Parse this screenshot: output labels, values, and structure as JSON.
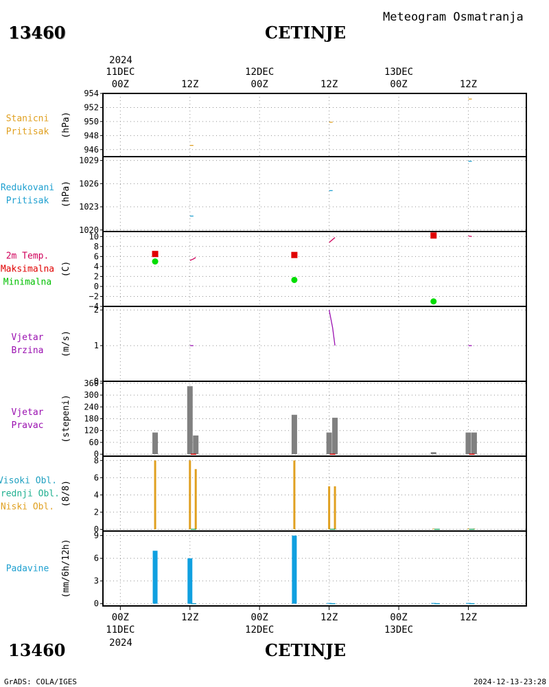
{
  "header": {
    "station_id": "13460",
    "station_name": "CETINJE",
    "meteogram_title": "Meteogram Osmatranja"
  },
  "footer": {
    "left": "GrADS: COLA/IGES",
    "right": "2024-12-13-23:28"
  },
  "time_axis": {
    "top_year": "2024",
    "bottom_year": "2024",
    "ticks": [
      {
        "t": 0,
        "label": "00Z",
        "date": "11DEC"
      },
      {
        "t": 12,
        "label": "12Z",
        "date": ""
      },
      {
        "t": 24,
        "label": "00Z",
        "date": "12DEC"
      },
      {
        "t": 36,
        "label": "12Z",
        "date": ""
      },
      {
        "t": 48,
        "label": "00Z",
        "date": "13DEC"
      },
      {
        "t": 60,
        "label": "12Z",
        "date": ""
      }
    ],
    "hour_range": [
      -3,
      70
    ]
  },
  "chart_data": [
    {
      "type": "line",
      "title_lines": [
        "Stanicni",
        "Pritisak"
      ],
      "ylabel": "(hPa)",
      "ylim": [
        945,
        954
      ],
      "yticks": [
        946,
        948,
        950,
        952,
        954
      ],
      "grid": true,
      "series": [
        {
          "color": "#e0a020",
          "segments": [
            [
              [
                12,
                946.6
              ],
              [
                12.6,
                946.6
              ]
            ],
            [
              [
                36,
                949.9
              ],
              [
                36.6,
                949.9
              ]
            ],
            [
              [
                60,
                953.2
              ],
              [
                60.6,
                953.2
              ]
            ]
          ]
        }
      ]
    },
    {
      "type": "line",
      "title_lines": [
        "Redukovani",
        "Pritisak"
      ],
      "ylabel": "(hPa)",
      "ylim": [
        1019.8,
        1029.5
      ],
      "yticks": [
        1020,
        1023,
        1026,
        1029
      ],
      "grid": true,
      "series": [
        {
          "color": "#1fa0d0",
          "segments": [
            [
              [
                12,
                1021.8
              ],
              [
                12.6,
                1021.8
              ]
            ],
            [
              [
                36,
                1025.1
              ],
              [
                36.6,
                1025.1
              ]
            ],
            [
              [
                60,
                1028.9
              ],
              [
                60.6,
                1028.9
              ]
            ]
          ]
        }
      ]
    },
    {
      "type": "line",
      "title_lines": [
        "2m Temp.",
        "Maksimalna",
        "Minimalna"
      ],
      "title_colors": [
        "#d0005a",
        "#e00000",
        "#00c000"
      ],
      "ylabel": "(C)",
      "ylim": [
        -4,
        11
      ],
      "yticks": [
        -4,
        -2,
        0,
        2,
        4,
        6,
        8,
        10
      ],
      "grid": true,
      "series": [
        {
          "color": "#d0005a",
          "segments": [
            [
              [
                12,
                5.2
              ],
              [
                12.6,
                5.5
              ],
              [
                13,
                5.8
              ]
            ],
            [
              [
                36,
                8.8
              ],
              [
                36.6,
                9.4
              ],
              [
                37,
                9.8
              ]
            ],
            [
              [
                60,
                10.1
              ],
              [
                60.6,
                10.0
              ]
            ]
          ]
        }
      ],
      "max_points": [
        {
          "t": 6,
          "v": 6.5
        },
        {
          "t": 30,
          "v": 6.3
        },
        {
          "t": 54,
          "v": 10.2
        }
      ],
      "min_points": [
        {
          "t": 6,
          "v": 5.0
        },
        {
          "t": 30,
          "v": 1.3
        },
        {
          "t": 54,
          "v": -3.0
        }
      ],
      "max_color": "#e00000",
      "min_color": "#00dd00"
    },
    {
      "type": "line",
      "title_lines": [
        "Vjetar",
        "Brzina"
      ],
      "ylabel": "(m/s)",
      "ylim": [
        0,
        2.1
      ],
      "yticks": [
        0,
        1,
        2
      ],
      "grid": true,
      "series": [
        {
          "color": "#9a10b0",
          "segments": [
            [
              [
                12,
                1.0
              ],
              [
                12.6,
                1.0
              ]
            ],
            [
              [
                36,
                2.0
              ],
              [
                36.6,
                1.5
              ],
              [
                37,
                1.0
              ]
            ],
            [
              [
                60,
                1.0
              ],
              [
                60.6,
                1.0
              ]
            ]
          ]
        }
      ]
    },
    {
      "type": "bar",
      "title_lines": [
        "Vjetar",
        "Pravac"
      ],
      "ylabel": "(stepeni)",
      "ylim": [
        -10,
        370
      ],
      "yticks": [
        0,
        60,
        120,
        180,
        240,
        300,
        360
      ],
      "grid": true,
      "bar_color": "#808080",
      "bars": [
        {
          "t": 6,
          "v": 110
        },
        {
          "t": 12,
          "v": 345
        },
        {
          "t": 13,
          "v": 95
        },
        {
          "t": 30,
          "v": 200
        },
        {
          "t": 36,
          "v": 110
        },
        {
          "t": 37,
          "v": 185
        },
        {
          "t": 54,
          "v": 10
        },
        {
          "t": 60,
          "v": 110
        },
        {
          "t": 61,
          "v": 110
        }
      ],
      "marks": [
        {
          "t": 12.6,
          "v": 0
        },
        {
          "t": 36.6,
          "v": 0
        },
        {
          "t": 60.6,
          "v": 0
        }
      ],
      "mark_color": "#e00000"
    },
    {
      "type": "bar",
      "title_lines": [
        "Visoki Obl.",
        "Srednji Obl.",
        "Niski Obl."
      ],
      "title_colors": [
        "#1fa0c0",
        "#20b090",
        "#e0a020"
      ],
      "ylabel": "(8/8)",
      "ylim": [
        -0.2,
        8.5
      ],
      "yticks": [
        0,
        2,
        4,
        6,
        8
      ],
      "grid": true,
      "bar_color": "#e0a020",
      "bars": [
        {
          "t": 6,
          "v": 8
        },
        {
          "t": 12,
          "v": 8
        },
        {
          "t": 13,
          "v": 7
        },
        {
          "t": 30,
          "v": 8
        },
        {
          "t": 36,
          "v": 5
        },
        {
          "t": 37,
          "v": 5
        },
        {
          "t": 54,
          "v": 0
        },
        {
          "t": 60,
          "v": 0
        },
        {
          "t": 61,
          "v": 0
        }
      ],
      "marks": [
        {
          "t": 12.6,
          "v": 0
        },
        {
          "t": 36.6,
          "v": 0
        },
        {
          "t": 54.6,
          "v": 0
        },
        {
          "t": 60.6,
          "v": 0
        }
      ],
      "mark_color": "#20a060"
    },
    {
      "type": "bar",
      "title_lines": [
        "Padavine"
      ],
      "title_colors": [
        "#1fa0d0"
      ],
      "ylabel": "(mm/6h/12h)",
      "ylim": [
        -0.3,
        9.6
      ],
      "yticks": [
        0,
        3,
        6,
        9
      ],
      "grid": true,
      "bar_color": "#10a0e0",
      "bars": [
        {
          "t": 6,
          "v": 7
        },
        {
          "t": 12,
          "v": 6
        },
        {
          "t": 30,
          "v": 9
        },
        {
          "t": 36,
          "v": 0
        },
        {
          "t": 54,
          "v": 0
        },
        {
          "t": 60,
          "v": 0
        }
      ],
      "marks": [
        {
          "t": 12.6,
          "v": 0
        },
        {
          "t": 36.6,
          "v": 0
        },
        {
          "t": 54.6,
          "v": 0
        },
        {
          "t": 60.6,
          "v": 0
        }
      ],
      "mark_color": "#1fa0d0"
    }
  ],
  "colors": {
    "frame": "#000000",
    "grid": "#909090",
    "pressure_label": "#e0a020",
    "reduced_label": "#1fa0d0",
    "wind_label": "#9a10b0"
  },
  "panel_label_colors": [
    "#e0a020",
    "#1fa0d0",
    null,
    "#9a10b0",
    "#9a10b0",
    null,
    null
  ]
}
